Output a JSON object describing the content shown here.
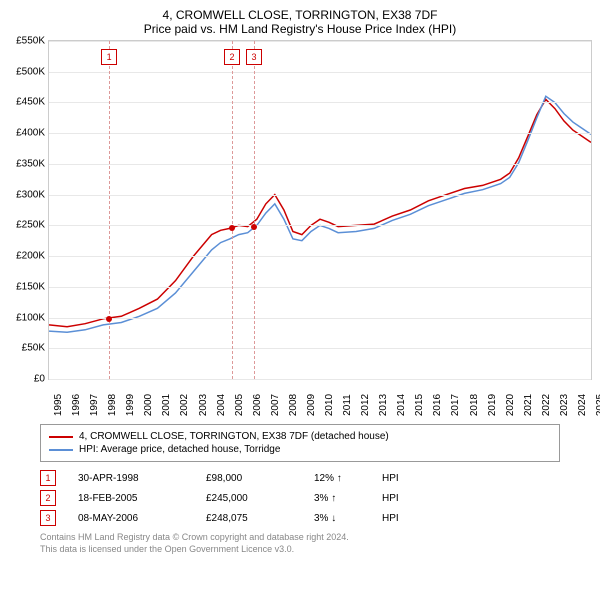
{
  "title": "4, CROMWELL CLOSE, TORRINGTON, EX38 7DF",
  "subtitle": "Price paid vs. HM Land Registry's House Price Index (HPI)",
  "chart": {
    "type": "line",
    "xlim": [
      1995,
      2025
    ],
    "ylim": [
      0,
      550000
    ],
    "ytick_step": 50000,
    "yticks_labels": [
      "£0",
      "£50K",
      "£100K",
      "£150K",
      "£200K",
      "£250K",
      "£300K",
      "£350K",
      "£400K",
      "£450K",
      "£500K",
      "£550K"
    ],
    "xticks": [
      1995,
      1996,
      1997,
      1998,
      1999,
      2000,
      2001,
      2002,
      2003,
      2004,
      2005,
      2006,
      2007,
      2008,
      2009,
      2010,
      2011,
      2012,
      2013,
      2014,
      2015,
      2016,
      2017,
      2018,
      2019,
      2020,
      2021,
      2022,
      2023,
      2024,
      2025
    ],
    "background_color": "#ffffff",
    "grid_color": "#e8e8e8",
    "line_width": 1.5,
    "series": [
      {
        "name": "4, CROMWELL CLOSE, TORRINGTON, EX38 7DF (detached house)",
        "color": "#cc0000",
        "data": [
          [
            1995,
            88000
          ],
          [
            1996,
            85000
          ],
          [
            1997,
            90000
          ],
          [
            1998,
            98000
          ],
          [
            1998.5,
            100000
          ],
          [
            1999,
            102000
          ],
          [
            2000,
            115000
          ],
          [
            2001,
            130000
          ],
          [
            2002,
            160000
          ],
          [
            2003,
            200000
          ],
          [
            2004,
            235000
          ],
          [
            2004.5,
            242000
          ],
          [
            2005,
            245000
          ],
          [
            2005.5,
            250000
          ],
          [
            2006,
            248000
          ],
          [
            2006.5,
            260000
          ],
          [
            2007,
            285000
          ],
          [
            2007.5,
            300000
          ],
          [
            2008,
            275000
          ],
          [
            2008.5,
            240000
          ],
          [
            2009,
            235000
          ],
          [
            2009.5,
            250000
          ],
          [
            2010,
            260000
          ],
          [
            2010.5,
            255000
          ],
          [
            2011,
            248000
          ],
          [
            2012,
            250000
          ],
          [
            2013,
            252000
          ],
          [
            2014,
            265000
          ],
          [
            2015,
            275000
          ],
          [
            2016,
            290000
          ],
          [
            2017,
            300000
          ],
          [
            2018,
            310000
          ],
          [
            2019,
            315000
          ],
          [
            2020,
            325000
          ],
          [
            2020.5,
            335000
          ],
          [
            2021,
            360000
          ],
          [
            2021.5,
            395000
          ],
          [
            2022,
            430000
          ],
          [
            2022.5,
            455000
          ],
          [
            2023,
            440000
          ],
          [
            2023.5,
            420000
          ],
          [
            2024,
            405000
          ],
          [
            2024.5,
            395000
          ],
          [
            2025,
            385000
          ]
        ]
      },
      {
        "name": "HPI: Average price, detached house, Torridge",
        "color": "#5b8fd6",
        "data": [
          [
            1995,
            78000
          ],
          [
            1996,
            76000
          ],
          [
            1997,
            80000
          ],
          [
            1998,
            88000
          ],
          [
            1999,
            92000
          ],
          [
            2000,
            102000
          ],
          [
            2001,
            115000
          ],
          [
            2002,
            140000
          ],
          [
            2003,
            175000
          ],
          [
            2004,
            210000
          ],
          [
            2004.5,
            222000
          ],
          [
            2005,
            228000
          ],
          [
            2005.5,
            235000
          ],
          [
            2006,
            238000
          ],
          [
            2006.5,
            250000
          ],
          [
            2007,
            270000
          ],
          [
            2007.5,
            285000
          ],
          [
            2008,
            260000
          ],
          [
            2008.5,
            228000
          ],
          [
            2009,
            225000
          ],
          [
            2009.5,
            240000
          ],
          [
            2010,
            250000
          ],
          [
            2010.5,
            245000
          ],
          [
            2011,
            238000
          ],
          [
            2012,
            240000
          ],
          [
            2013,
            245000
          ],
          [
            2014,
            258000
          ],
          [
            2015,
            268000
          ],
          [
            2016,
            282000
          ],
          [
            2017,
            292000
          ],
          [
            2018,
            302000
          ],
          [
            2019,
            308000
          ],
          [
            2020,
            318000
          ],
          [
            2020.5,
            328000
          ],
          [
            2021,
            352000
          ],
          [
            2021.5,
            388000
          ],
          [
            2022,
            425000
          ],
          [
            2022.5,
            460000
          ],
          [
            2023,
            450000
          ],
          [
            2023.5,
            432000
          ],
          [
            2024,
            418000
          ],
          [
            2024.5,
            408000
          ],
          [
            2025,
            398000
          ]
        ]
      }
    ],
    "sale_markers": [
      {
        "n": "1",
        "x": 1998.33,
        "y": 98000,
        "color": "#cc0000"
      },
      {
        "n": "2",
        "x": 2005.13,
        "y": 245000,
        "color": "#cc0000"
      },
      {
        "n": "3",
        "x": 2006.35,
        "y": 248075,
        "color": "#cc0000"
      }
    ]
  },
  "legend": [
    {
      "color": "#cc0000",
      "label": "4, CROMWELL CLOSE, TORRINGTON, EX38 7DF (detached house)"
    },
    {
      "color": "#5b8fd6",
      "label": "HPI: Average price, detached house, Torridge"
    }
  ],
  "sales": [
    {
      "n": "1",
      "date": "30-APR-1998",
      "price": "£98,000",
      "pct": "12%",
      "dir": "↑",
      "suffix": "HPI"
    },
    {
      "n": "2",
      "date": "18-FEB-2005",
      "price": "£245,000",
      "pct": "3%",
      "dir": "↑",
      "suffix": "HPI"
    },
    {
      "n": "3",
      "date": "08-MAY-2006",
      "price": "£248,075",
      "pct": "3%",
      "dir": "↓",
      "suffix": "HPI"
    }
  ],
  "footer_line1": "Contains HM Land Registry data © Crown copyright and database right 2024.",
  "footer_line2": "This data is licensed under the Open Government Licence v3.0."
}
